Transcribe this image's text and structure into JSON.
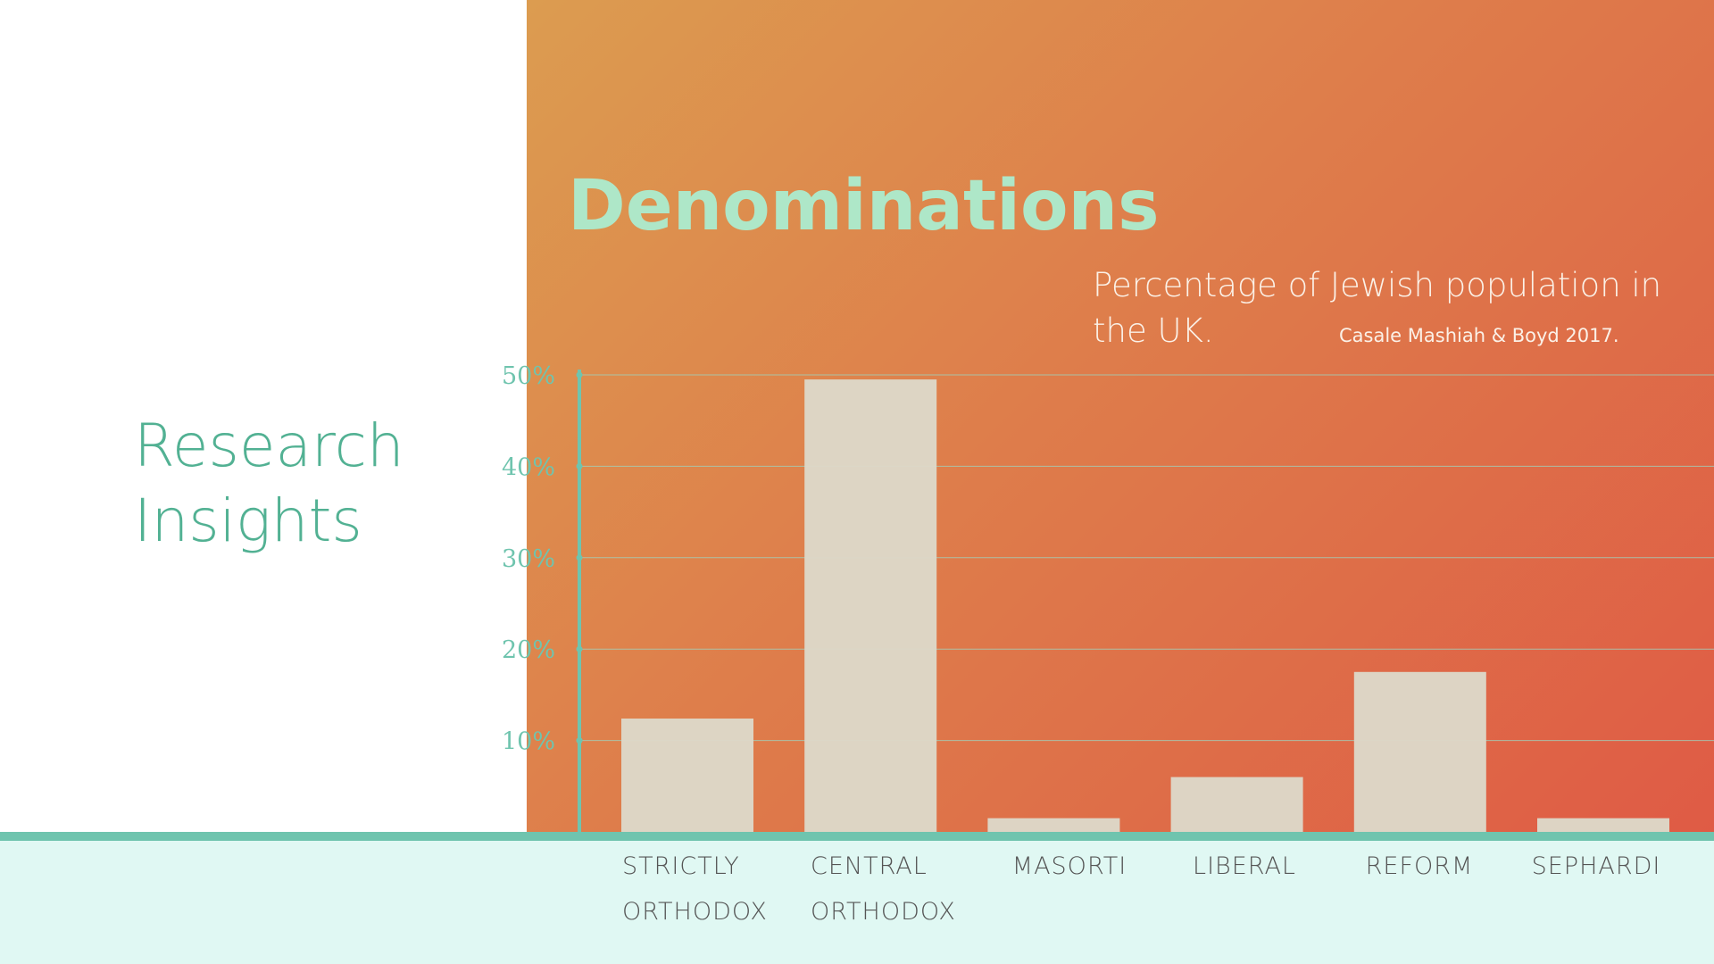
{
  "slide": {
    "section_title": [
      "Research",
      "Insights"
    ]
  },
  "chart_data": {
    "type": "bar",
    "title": "Denominations",
    "subtitle": "Percentage of Jewish population in the UK.",
    "source": "Casale Mashiah & Boyd 2017.",
    "categories": [
      [
        "STRICTLY",
        "ORTHODOX"
      ],
      [
        "CENTRAL",
        "ORTHODOX"
      ],
      [
        "MASORTI"
      ],
      [
        "LIBERAL"
      ],
      [
        "REFORM"
      ],
      [
        "SEPHARDI"
      ]
    ],
    "values": [
      12.4,
      49.5,
      1.5,
      6,
      17.5,
      1.5
    ],
    "yticks": [
      "10%",
      "20%",
      "30%",
      "40%",
      "50%"
    ],
    "ytick_values": [
      10,
      20,
      30,
      40,
      50
    ],
    "ylim": [
      0,
      50
    ],
    "grid": true,
    "xlabel": "",
    "ylabel": "",
    "colors": {
      "bar": "#ddd8c8",
      "axis": "#6fc4ae",
      "gridline": "#9fd2bd",
      "ytick_label": "#6fc4ae",
      "xtick_label": "#555555",
      "title": "#aee7c8",
      "subtitle": "#fbf1e7"
    }
  }
}
